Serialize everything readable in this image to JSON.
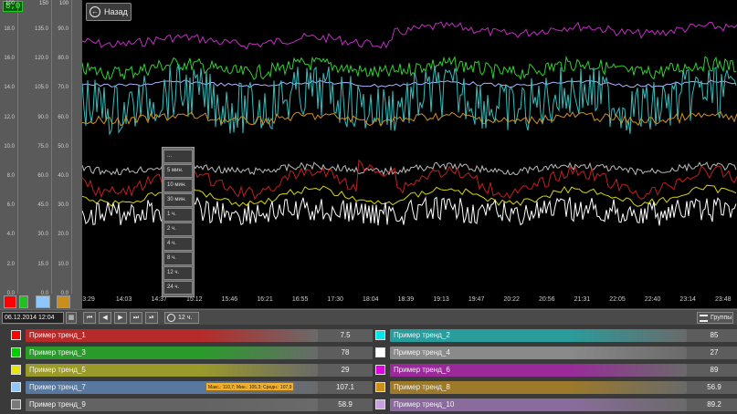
{
  "axes": {
    "badge": "8,0",
    "columns": [
      {
        "top": "100",
        "ticks": [
          "18.0",
          "16.0",
          "14.0",
          "12.0",
          "10.0",
          "8.0",
          "6.0",
          "4.0",
          "2.0",
          "0.0"
        ]
      },
      {
        "top": "150",
        "ticks": [
          "135.0",
          "120.0",
          "105.0",
          "90.0",
          "75.0",
          "60.0",
          "45.0",
          "30.0",
          "15.0",
          "0.0"
        ]
      },
      {
        "top": "100",
        "ticks": [
          "90.0",
          "80.0",
          "70.0",
          "60.0",
          "50.0",
          "40.0",
          "30.0",
          "20.0",
          "10.0",
          "0.0"
        ]
      }
    ]
  },
  "back_button": {
    "label": "Назад"
  },
  "time_axis": [
    "3:29",
    "14:03",
    "14:37",
    "15:12",
    "15:46",
    "16:21",
    "16:55",
    "17:30",
    "18:04",
    "18:39",
    "19:13",
    "19:47",
    "20:22",
    "20:56",
    "21:31",
    "22:05",
    "22:40",
    "23:14",
    "23:48"
  ],
  "toolbar": {
    "date": "06.12.2014 12:04",
    "calendar_icon": "calendar-icon",
    "nav": [
      "⏮",
      "◀",
      "▶",
      "⏭",
      "⏯"
    ],
    "period": "12 ч.",
    "groups": "Группы"
  },
  "period_menu": [
    "...",
    "5 мин.",
    "10 мин.",
    "30 мин.",
    "1 ч.",
    "2 ч.",
    "4 ч.",
    "8 ч.",
    "12 ч.",
    "24 ч."
  ],
  "legend": [
    {
      "name": "Пример тренд_1",
      "value": "7.5",
      "color": "#ff0000",
      "bar": "#b72a2a"
    },
    {
      "name": "Пример тренд_2",
      "value": "85",
      "color": "#00e5e5",
      "bar": "#2a9c9c"
    },
    {
      "name": "Пример тренд_3",
      "value": "78",
      "color": "#00d000",
      "bar": "#2a9b2a"
    },
    {
      "name": "Пример тренд_4",
      "value": "27",
      "color": "#ffffff",
      "bar": "#8a8a8a"
    },
    {
      "name": "Пример тренд_5",
      "value": "29",
      "color": "#e6e600",
      "bar": "#9a9a2a"
    },
    {
      "name": "Пример тренд_6",
      "value": "89",
      "color": "#e000e0",
      "bar": "#9a2a9a"
    },
    {
      "name": "Пример тренд_7",
      "value": "107.1",
      "color": "#8cc8ff",
      "bar": "#5878a0"
    },
    {
      "name": "Пример тренд_8",
      "value": "56.9",
      "color": "#c8901a",
      "bar": "#9c7a2a"
    },
    {
      "name": "Пример тренд_9",
      "value": "58.9",
      "color": "#7a7a7a",
      "bar": "#636363"
    },
    {
      "name": "Пример тренд_10",
      "value": "89.2",
      "color": "#c8a0e0",
      "bar": "#8a6c9c"
    }
  ],
  "tooltip": "Макс.: 110,7;  Мин.: 105,3;  Средн.: 107,9",
  "swatches": [
    "#ff0000",
    "#20c020",
    "#8cc8ff",
    "#c8901a"
  ]
}
